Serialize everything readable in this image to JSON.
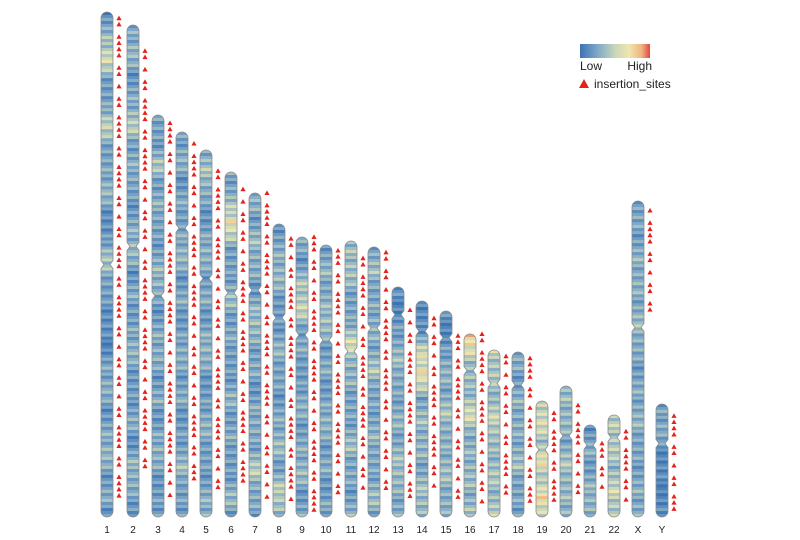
{
  "legend": {
    "low_label": "Low",
    "high_label": "High",
    "marker_label": "insertion_sites",
    "gradient_colors": [
      "#3b73b3",
      "#7fa8c9",
      "#c8d6b8",
      "#efe6b0",
      "#f0b47e",
      "#e0473f"
    ]
  },
  "colors": {
    "marker": "#e3231c",
    "chrom_outline": "#8a8a8a",
    "chrom_base": "#4a7fb8"
  },
  "chromosomes": [
    {
      "name": "1",
      "density": [
        0.18,
        0.35,
        0.62,
        0.28,
        0.22,
        0.55,
        0.3,
        0.25,
        0.4,
        0.2,
        0.15,
        0.45,
        0.32,
        0.2,
        0.18,
        0.1,
        0.25,
        0.35,
        0.2,
        0.28,
        0.4,
        0.22,
        0.3,
        0.18
      ]
    },
    {
      "name": "2",
      "density": [
        0.25,
        0.4,
        0.2,
        0.3,
        0.5,
        0.25,
        0.35,
        0.2,
        0.28,
        0.42,
        0.2,
        0.3,
        0.22,
        0.38,
        0.25,
        0.2,
        0.32,
        0.18,
        0.4,
        0.26,
        0.22
      ]
    },
    {
      "name": "3",
      "density": [
        0.3,
        0.2,
        0.45,
        0.25,
        0.35,
        0.22,
        0.3,
        0.4,
        0.2,
        0.28,
        0.35,
        0.22,
        0.3,
        0.2,
        0.38,
        0.25,
        0.2,
        0.3
      ]
    },
    {
      "name": "4",
      "density": [
        0.22,
        0.35,
        0.2,
        0.3,
        0.25,
        0.4,
        0.22,
        0.3,
        0.2,
        0.35,
        0.25,
        0.3,
        0.2,
        0.28,
        0.4,
        0.22,
        0.3
      ]
    },
    {
      "name": "5",
      "density": [
        0.3,
        0.45,
        0.25,
        0.2,
        0.38,
        0.25,
        0.3,
        0.22,
        0.4,
        0.25,
        0.2,
        0.35,
        0.28,
        0.22,
        0.3,
        0.4
      ]
    },
    {
      "name": "6",
      "density": [
        0.25,
        0.35,
        0.7,
        0.3,
        0.22,
        0.4,
        0.25,
        0.3,
        0.2,
        0.35,
        0.25,
        0.3,
        0.2,
        0.38,
        0.25
      ]
    },
    {
      "name": "7",
      "density": [
        0.35,
        0.25,
        0.4,
        0.3,
        0.22,
        0.45,
        0.28,
        0.3,
        0.2,
        0.35,
        0.25,
        0.5,
        0.3,
        0.25
      ]
    },
    {
      "name": "8",
      "density": [
        0.22,
        0.3,
        0.4,
        0.25,
        0.2,
        0.35,
        0.28,
        0.22,
        0.3,
        0.4,
        0.25,
        0.55,
        0.3
      ]
    },
    {
      "name": "9",
      "density": [
        0.3,
        0.22,
        0.45,
        0.55,
        0.25,
        0.3,
        0.2,
        0.35,
        0.25,
        0.3,
        0.4,
        0.22,
        0.3
      ]
    },
    {
      "name": "10",
      "density": [
        0.25,
        0.35,
        0.3,
        0.45,
        0.25,
        0.3,
        0.22,
        0.38,
        0.25,
        0.3,
        0.2,
        0.35
      ]
    },
    {
      "name": "11",
      "density": [
        0.35,
        0.45,
        0.3,
        0.25,
        0.6,
        0.35,
        0.3,
        0.25,
        0.4,
        0.3,
        0.25,
        0.35
      ]
    },
    {
      "name": "12",
      "density": [
        0.3,
        0.4,
        0.25,
        0.35,
        0.3,
        0.45,
        0.25,
        0.3,
        0.35,
        0.25,
        0.4,
        0.3
      ]
    },
    {
      "name": "13",
      "density": [
        0.15,
        0.12,
        0.3,
        0.4,
        0.25,
        0.35,
        0.3,
        0.45,
        0.3,
        0.35
      ]
    },
    {
      "name": "14",
      "density": [
        0.15,
        0.12,
        0.55,
        0.7,
        0.3,
        0.4,
        0.35,
        0.3,
        0.45,
        0.35
      ]
    },
    {
      "name": "15",
      "density": [
        0.15,
        0.12,
        0.35,
        0.3,
        0.45,
        0.3,
        0.4,
        0.35,
        0.3
      ]
    },
    {
      "name": "16",
      "density": [
        0.8,
        0.45,
        0.35,
        0.6,
        0.3,
        0.4,
        0.35,
        0.45
      ]
    },
    {
      "name": "17",
      "density": [
        0.5,
        0.45,
        0.4,
        0.55,
        0.35,
        0.45,
        0.4,
        0.5
      ]
    },
    {
      "name": "18",
      "density": [
        0.3,
        0.25,
        0.35,
        0.3,
        0.4,
        0.25,
        0.3
      ]
    },
    {
      "name": "19",
      "density": [
        0.55,
        0.6,
        0.45,
        0.65,
        0.5,
        0.7,
        0.55
      ]
    },
    {
      "name": "20",
      "density": [
        0.35,
        0.4,
        0.3,
        0.45,
        0.35,
        0.4
      ]
    },
    {
      "name": "21",
      "density": [
        0.2,
        0.3,
        0.25,
        0.4,
        0.3
      ]
    },
    {
      "name": "22",
      "density": [
        0.45,
        0.5,
        0.4,
        0.55,
        0.45
      ]
    },
    {
      "name": "X",
      "density": [
        0.3,
        0.25,
        0.35,
        0.3,
        0.4,
        0.25,
        0.3,
        0.35,
        0.25,
        0.3,
        0.35
      ]
    },
    {
      "name": "Y",
      "density": [
        0.2,
        0.35,
        0.15,
        0.12,
        0.1,
        0.12
      ]
    }
  ]
}
